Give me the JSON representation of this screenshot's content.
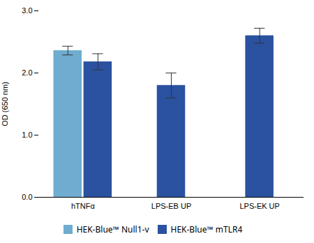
{
  "chart_data": {
    "type": "bar",
    "categories": [
      "hTNFα",
      "LPS-EB UP",
      "LPS-EK UP"
    ],
    "series": [
      {
        "name": "HEK-Blue™ Null1-v",
        "color": "#6faccf",
        "values": [
          2.36,
          null,
          null
        ],
        "errors": [
          0.07,
          null,
          null
        ]
      },
      {
        "name": "HEK-Blue™ mTLR4",
        "color": "#2b52a0",
        "values": [
          2.18,
          1.8,
          2.6
        ],
        "errors": [
          0.13,
          0.2,
          0.12
        ]
      }
    ],
    "ylabel": "OD (650 nm)",
    "ylim": [
      0,
      3
    ],
    "yticks": [
      0,
      1,
      2,
      3
    ],
    "grid": false,
    "legend": "bottom"
  }
}
